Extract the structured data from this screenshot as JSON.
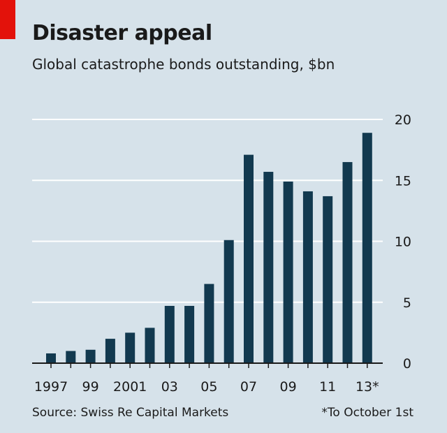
{
  "header": {
    "title": "Disaster appeal",
    "subtitle": "Global catastrophe bonds outstanding, $bn"
  },
  "footer": {
    "source": "Source: Swiss Re Capital Markets",
    "note": "*To October 1st"
  },
  "colors": {
    "background": "#d6e2ea",
    "bar": "#12394f",
    "gridline": "#ffffff",
    "accent": "#e3120b"
  },
  "chart_data": {
    "type": "bar",
    "title": "Disaster appeal",
    "subtitle": "Global catastrophe bonds outstanding, $bn",
    "xlabel": "",
    "ylabel": "$bn",
    "ylim": [
      0,
      20
    ],
    "yticks": [
      0,
      5,
      10,
      15,
      20
    ],
    "y_axis_side": "right",
    "grid": true,
    "categories": [
      "1997",
      "1998",
      "1999",
      "2000",
      "2001",
      "2002",
      "2003",
      "2004",
      "2005",
      "2006",
      "2007",
      "2008",
      "2009",
      "2010",
      "2011",
      "2012",
      "2013*"
    ],
    "values": [
      0.8,
      1.0,
      1.1,
      2.0,
      2.5,
      2.9,
      4.7,
      4.7,
      6.5,
      10.1,
      17.1,
      15.7,
      14.9,
      14.1,
      13.7,
      16.5,
      18.9
    ],
    "xtick_labels": [
      "1997",
      "99",
      "2001",
      "03",
      "05",
      "07",
      "09",
      "11",
      "13*"
    ],
    "xtick_categories": [
      "1997",
      "1999",
      "2001",
      "2003",
      "2005",
      "2007",
      "2009",
      "2011",
      "2013*"
    ]
  }
}
